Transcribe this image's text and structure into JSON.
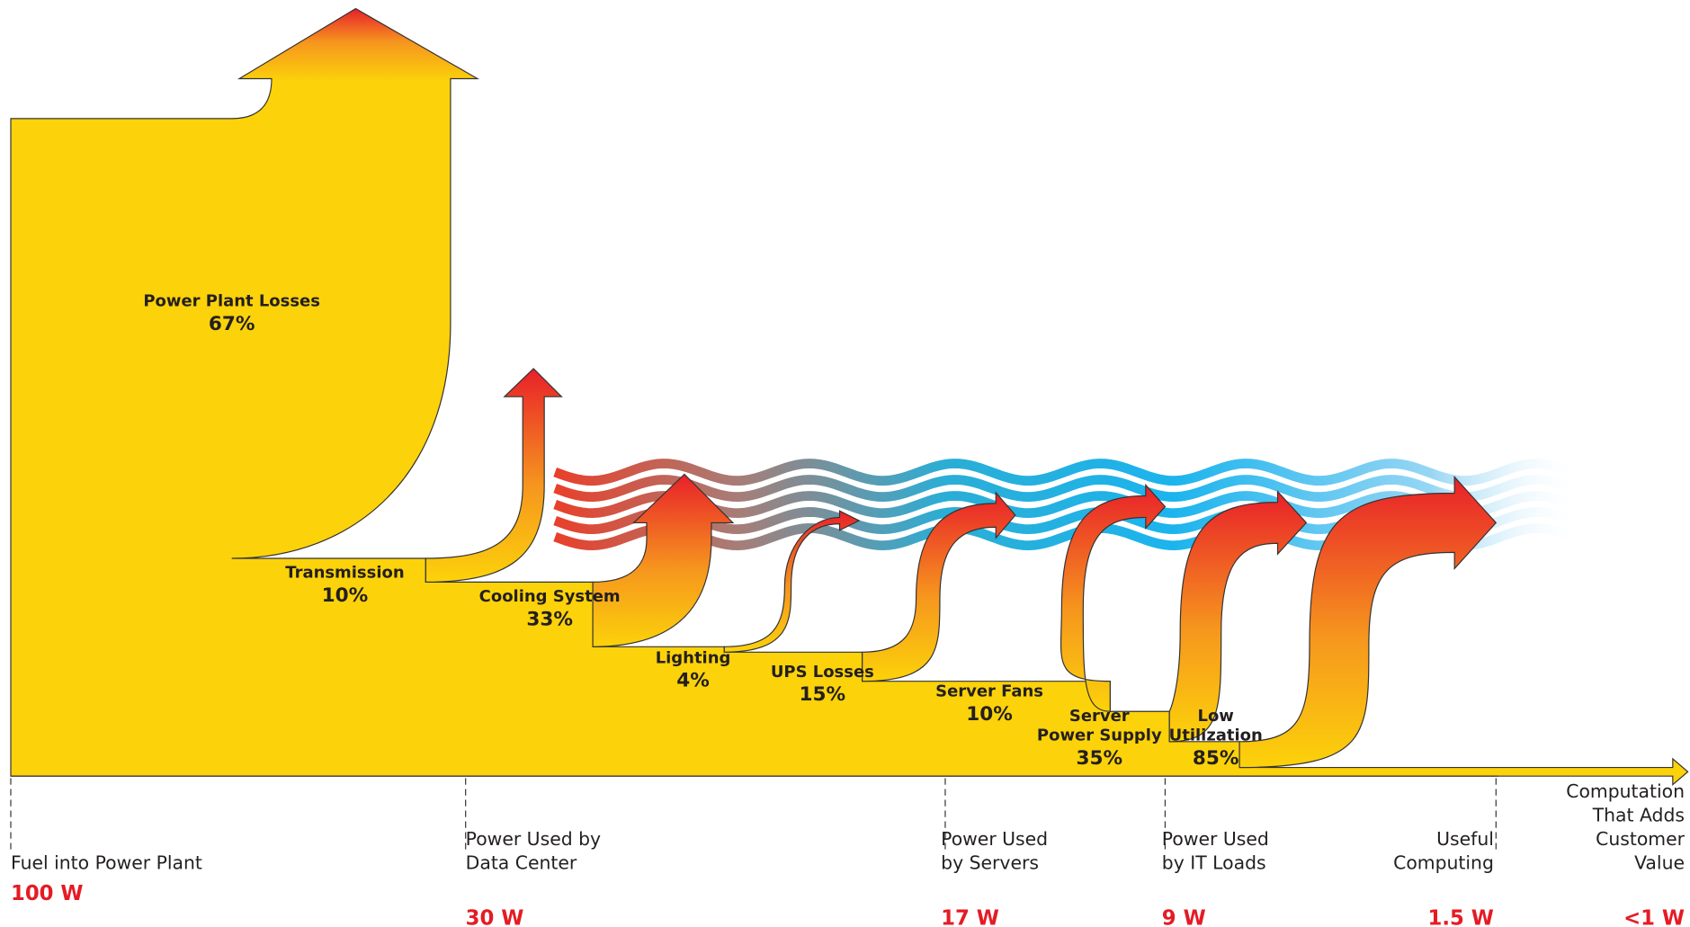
{
  "losses": [
    {
      "label": [
        "Power Plant Losses"
      ],
      "percent": "67%"
    },
    {
      "label": [
        "Transmission"
      ],
      "percent": "10%"
    },
    {
      "label": [
        "Cooling System"
      ],
      "percent": "33%"
    },
    {
      "label": [
        "Lighting"
      ],
      "percent": "4%"
    },
    {
      "label": [
        "UPS Losses"
      ],
      "percent": "15%"
    },
    {
      "label": [
        "Server Fans"
      ],
      "percent": "10%"
    },
    {
      "label": [
        "Server",
        "Power Supply"
      ],
      "percent": "35%"
    },
    {
      "label": [
        "Low",
        "Utilization"
      ],
      "percent": "85%"
    }
  ],
  "stages": [
    {
      "label": [
        "Fuel into Power Plant"
      ],
      "value": "100 W"
    },
    {
      "label": [
        "Power Used by",
        "Data Center"
      ],
      "value": "30 W"
    },
    {
      "label": [
        "Power Used",
        "by Servers"
      ],
      "value": "17 W"
    },
    {
      "label": [
        "Power Used",
        "by IT Loads"
      ],
      "value": "9 W"
    },
    {
      "label": [
        "Useful",
        "Computing"
      ],
      "value": "1.5 W"
    },
    {
      "label": [
        "Computation",
        "That Adds",
        "Customer",
        "Value"
      ],
      "value": "<1 W"
    }
  ]
}
